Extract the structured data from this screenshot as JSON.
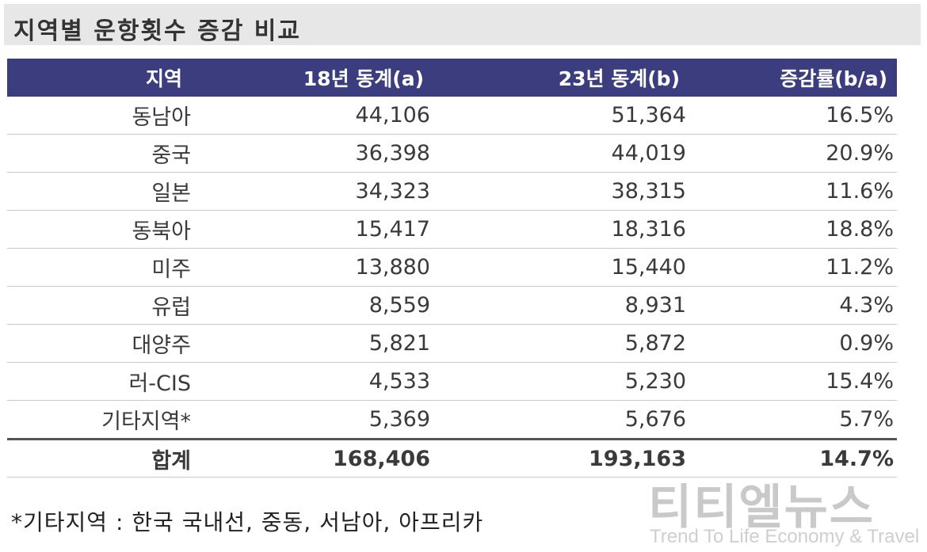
{
  "title": "지역별 운항횟수 증감 비교",
  "table": {
    "headers": [
      "지역",
      "18년 동계(a)",
      "23년 동계(b)",
      "증감률(b/a)"
    ],
    "rows": [
      [
        "동남아",
        "44,106",
        "51,364",
        "16.5%"
      ],
      [
        "중국",
        "36,398",
        "44,019",
        "20.9%"
      ],
      [
        "일본",
        "34,323",
        "38,315",
        "11.6%"
      ],
      [
        "동북아",
        "15,417",
        "18,316",
        "18.8%"
      ],
      [
        "미주",
        "13,880",
        "15,440",
        "11.2%"
      ],
      [
        "유럽",
        "8,559",
        "8,931",
        "4.3%"
      ],
      [
        "대양주",
        "5,821",
        "5,872",
        "0.9%"
      ],
      [
        "러-CIS",
        "4,533",
        "5,230",
        "15.4%"
      ],
      [
        "기타지역*",
        "5,369",
        "5,676",
        "5.7%"
      ]
    ],
    "total": [
      "합계",
      "168,406",
      "193,163",
      "14.7%"
    ]
  },
  "footnote": "*기타지역 : 한국 국내선, 중동, 서남아, 아프리카",
  "watermark": {
    "korean": "티티엘뉴스",
    "english": "Trend To Life Economy & Travel"
  },
  "colors": {
    "header_bg": "#3b3d7e",
    "title_bg": "#e7e7e7"
  }
}
